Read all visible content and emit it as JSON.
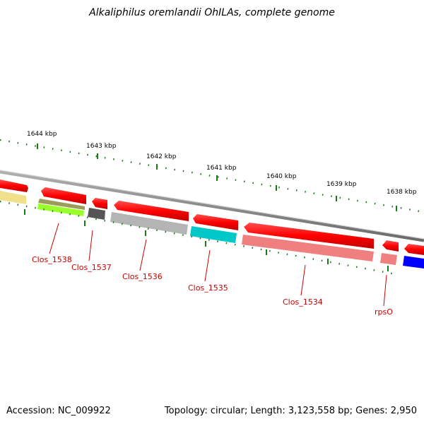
{
  "title": "Alkaliphilus oremlandii OhILAs, complete genome",
  "footer": {
    "accession": "Accession: NC_009922",
    "topology": "Topology: circular; Length: 3,123,558 bp; Genes: 2,950"
  },
  "ruler": {
    "labels": [
      "1644 kbp",
      "1643 kbp",
      "1642 kbp",
      "1641 kbp",
      "1640 kbp",
      "1639 kbp",
      "1638 kbp"
    ]
  },
  "gene_labels": [
    "Clos_1538",
    "Clos_1537",
    "Clos_1536",
    "Clos_1535",
    "Clos_1534",
    "rpsO"
  ],
  "colors": {
    "cds": "#ff0000",
    "backbone": "#8c8c8c",
    "gc_skew": "#1a7a1a",
    "label": "#cc0000",
    "cog_tracks": [
      "#f0e08c",
      "#9b9b5a",
      "#9aff2a",
      "#555555",
      "#b4b4b4",
      "#00c8c8",
      "#f08080",
      "#f08080",
      "#0000ff"
    ]
  }
}
